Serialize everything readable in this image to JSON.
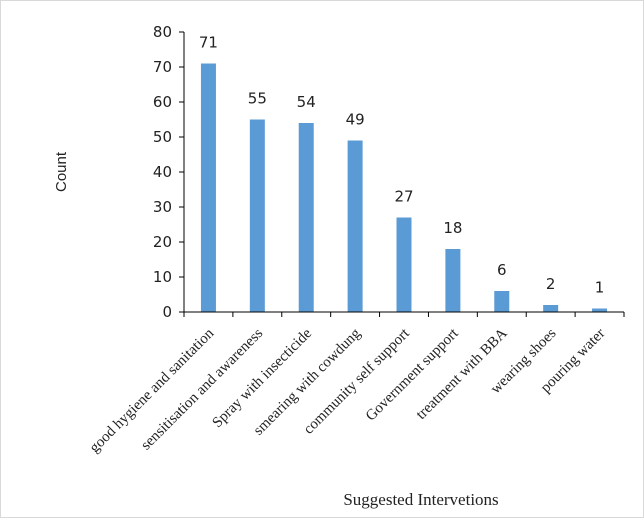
{
  "chart_data": {
    "type": "bar",
    "title": "",
    "xlabel": "Suggested Intervetions",
    "ylabel": "Count",
    "ylim": [
      0,
      80
    ],
    "yticks": [
      0,
      10,
      20,
      30,
      40,
      50,
      60,
      70,
      80
    ],
    "grid": false,
    "legend": "none",
    "categories": [
      "good hygiene and sanitation",
      "sensitisation and awareness",
      "Spray with insecticide",
      "smearing with cowdung",
      "community self support",
      "Government support",
      "treatment with BBA",
      "wearing shoes",
      "pouring water"
    ],
    "series": [
      {
        "values": [
          71,
          55,
          54,
          49,
          27,
          18,
          6,
          2,
          1
        ]
      }
    ],
    "colors": {
      "bar": "#5b9bd5",
      "axis": "#000000"
    }
  }
}
